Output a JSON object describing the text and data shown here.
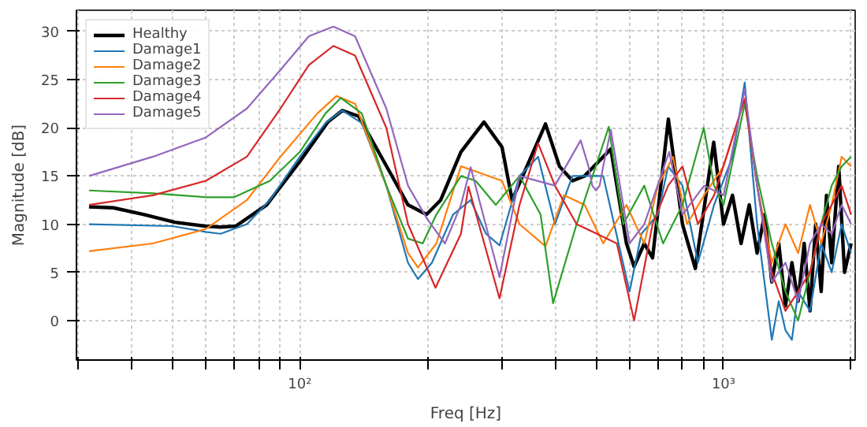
{
  "chart_data": {
    "type": "line",
    "xlabel": "Freq [Hz]",
    "ylabel": "Magnitude [dB]",
    "log": "x",
    "grid": true,
    "legend": "top left",
    "xlim": [
      29.7,
      2045
    ],
    "ylim": [
      -4.1,
      32.2
    ],
    "xticks": [
      {
        "value": 30,
        "label": null
      },
      {
        "value": 40,
        "label": null
      },
      {
        "value": 50,
        "label": null
      },
      {
        "value": 60,
        "label": null
      },
      {
        "value": 70,
        "label": null
      },
      {
        "value": 80,
        "label": null
      },
      {
        "value": 90,
        "label": null
      },
      {
        "value": 100,
        "label": "10²"
      },
      {
        "value": 200,
        "label": null
      },
      {
        "value": 300,
        "label": null
      },
      {
        "value": 400,
        "label": null
      },
      {
        "value": 500,
        "label": null
      },
      {
        "value": 600,
        "label": null
      },
      {
        "value": 700,
        "label": null
      },
      {
        "value": 800,
        "label": null
      },
      {
        "value": 900,
        "label": null
      },
      {
        "value": 1000,
        "label": "10³"
      },
      {
        "value": 2000,
        "label": null
      }
    ],
    "yticks": [
      0,
      5,
      10,
      15,
      20,
      25,
      30
    ],
    "series": [
      {
        "name": "Healthy",
        "color": "#000000",
        "x": [
          31.8,
          36.3,
          42.9,
          50.7,
          59.8,
          65,
          70.6,
          83.5,
          100,
          116.4,
          126,
          137.6,
          162.6,
          180,
          199,
          215,
          240,
          272,
          300,
          317,
          380,
          410,
          440,
          470,
          542,
          590,
          615,
          650,
          680,
          741,
          800,
          858,
          948,
          1000,
          1050,
          1100,
          1150,
          1200,
          1250,
          1300,
          1350,
          1400,
          1450,
          1500,
          1550,
          1600,
          1650,
          1700,
          1750,
          1800,
          1870,
          1930,
          2000
        ],
        "values": [
          11.8,
          11.7,
          11.0,
          10.2,
          9.8,
          9.7,
          9.8,
          12,
          16.5,
          20.6,
          21.8,
          21.2,
          15.5,
          12,
          11,
          12.5,
          17.5,
          20.6,
          18,
          12.5,
          20.4,
          16,
          14.5,
          15,
          17.8,
          8,
          5.6,
          8,
          6.5,
          20.9,
          10,
          5.4,
          18.5,
          10,
          13,
          8,
          12,
          7,
          11,
          4,
          8,
          1.5,
          6,
          2,
          8,
          1,
          10,
          3,
          13,
          6,
          16,
          5,
          8
        ]
      },
      {
        "name": "Damage1",
        "color": "#1f77b4",
        "x": [
          31.8,
          50,
          60,
          65,
          75,
          85,
          100,
          115,
          126,
          140,
          160,
          180,
          190,
          205,
          230,
          253,
          275,
          296,
          330,
          365,
          400,
          440,
          520,
          600,
          640,
          700,
          740,
          800,
          870,
          950,
          1050,
          1122,
          1200,
          1300,
          1350,
          1400,
          1450,
          1500,
          1600,
          1700,
          1800,
          1900,
          2000
        ],
        "values": [
          10,
          9.8,
          9.2,
          9.0,
          10,
          12.5,
          17,
          20.5,
          21.8,
          20.5,
          14,
          6,
          4.3,
          6,
          11,
          12.5,
          9,
          7.8,
          15,
          17,
          10,
          15,
          15,
          3,
          9,
          11,
          16,
          14,
          6,
          12,
          17,
          24.7,
          10,
          -2,
          2,
          -1,
          -2,
          3,
          1,
          8,
          5,
          10,
          7
        ]
      },
      {
        "name": "Damage2",
        "color": "#ff7f0e",
        "x": [
          31.8,
          45,
          60,
          75,
          90,
          110,
          122,
          135,
          160,
          180,
          190,
          210,
          240,
          255,
          300,
          330,
          380,
          420,
          470,
          520,
          590,
          650,
          700,
          760,
          820,
          900,
          1000,
          1122,
          1200,
          1300,
          1400,
          1500,
          1600,
          1700,
          1800,
          1900,
          2000
        ],
        "values": [
          7.2,
          8,
          9.5,
          12.5,
          17,
          21.5,
          23.3,
          22.5,
          14,
          7,
          5.5,
          8,
          16,
          15.6,
          14.5,
          10,
          7.7,
          13,
          12,
          8,
          12,
          8,
          14,
          17,
          10,
          13,
          16,
          23,
          14,
          6,
          10,
          7,
          12,
          8,
          12,
          17,
          16
        ]
      },
      {
        "name": "Damage3",
        "color": "#2ca02c",
        "x": [
          31.8,
          45,
          60,
          70,
          85,
          100,
          115,
          125,
          140,
          160,
          180,
          195,
          210,
          240,
          260,
          290,
          330,
          370,
          396,
          450,
          536,
          580,
          650,
          720,
          800,
          898,
          950,
          1000,
          1122,
          1200,
          1300,
          1400,
          1500,
          1600,
          1700,
          1800,
          1900,
          2000
        ],
        "values": [
          13.5,
          13.2,
          12.8,
          12.8,
          14.5,
          17.5,
          21.5,
          23.1,
          21.5,
          14,
          8.5,
          8,
          11,
          15,
          14.5,
          12,
          15,
          11,
          1.8,
          10,
          20.1,
          10,
          14,
          8,
          12,
          20,
          14,
          12,
          22.5,
          15,
          8,
          3,
          0,
          5,
          10,
          14,
          16,
          17
        ]
      },
      {
        "name": "Damage4",
        "color": "#d62728",
        "x": [
          31.8,
          45,
          60,
          75,
          90,
          105,
          120,
          135,
          160,
          180,
          209,
          240,
          250,
          296,
          330,
          365,
          400,
          450,
          560,
          615,
          680,
          740,
          800,
          870,
          950,
          1122,
          1200,
          1300,
          1400,
          1500,
          1600,
          1700,
          1800,
          1900,
          2000
        ],
        "values": [
          12,
          13,
          14.5,
          17,
          22,
          26.5,
          28.5,
          27.5,
          20,
          10,
          3.4,
          9,
          13.9,
          2.3,
          12,
          18.4,
          14,
          10,
          8,
          0,
          10,
          14,
          16,
          10,
          13,
          23,
          14,
          5,
          1,
          3,
          5,
          10,
          12,
          14,
          11
        ]
      },
      {
        "name": "Damage5",
        "color": "#9467bd",
        "x": [
          31.8,
          45,
          60,
          75,
          90,
          105,
          120,
          135,
          160,
          180,
          200,
          220,
          240,
          253,
          296,
          330,
          400,
          460,
          480,
          490,
          500,
          510,
          520,
          542,
          600,
          650,
          744,
          800,
          900,
          1000,
          1122,
          1200,
          1300,
          1400,
          1500,
          1600,
          1700,
          1800,
          1900,
          2000
        ],
        "values": [
          15,
          17,
          19,
          22,
          26,
          29.5,
          30.5,
          29.5,
          22,
          14,
          10.5,
          8,
          12,
          15.9,
          4.5,
          15,
          14,
          18.7,
          16,
          14,
          13.5,
          14,
          16,
          19.8,
          8,
          10,
          17.5,
          11,
          14,
          13,
          24,
          14,
          4,
          6,
          2,
          8,
          10,
          9,
          12,
          10
        ]
      }
    ]
  }
}
